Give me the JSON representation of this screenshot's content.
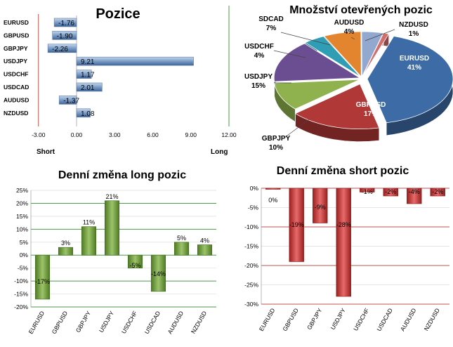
{
  "chart_data": [
    {
      "type": "bar",
      "orientation": "horizontal",
      "title": "Pozice",
      "categories": [
        "EURUSD",
        "GBPUSD",
        "GBPJPY",
        "USDJPY",
        "USDCHF",
        "USDCAD",
        "AUDUSD",
        "NZDUSD"
      ],
      "values": [
        -1.76,
        -1.9,
        -2.26,
        9.21,
        1.17,
        2.01,
        -1.37,
        1.08
      ],
      "value_labels": [
        "-1.76",
        "-1.90",
        "-2.26",
        "9.21",
        "1.17",
        "2.01",
        "-1.37",
        "1.08"
      ],
      "xlim": [
        -3,
        12
      ],
      "xticks": [
        "-3.00",
        "0.00",
        "3.00",
        "6.00",
        "9.00",
        "12.00"
      ],
      "left_label": "Short",
      "right_label": "Long",
      "colors": {
        "bar": "#7a9cc6",
        "grid_left": "#c0504d",
        "grid_right": "#4e9a4a"
      }
    },
    {
      "type": "pie",
      "title": "Množství otevřených pozic",
      "slices": [
        {
          "name": "EURUSD",
          "pct": 41,
          "label": "41%",
          "color": "#3d6ba5"
        },
        {
          "name": "GBPUSD",
          "pct": 17,
          "label": "17%",
          "color": "#b03836"
        },
        {
          "name": "GBPJPY",
          "pct": 10,
          "label": "10%",
          "color": "#8fb24e"
        },
        {
          "name": "USDJPY",
          "pct": 15,
          "label": "15%",
          "color": "#6b4e92"
        },
        {
          "name": "USDCHF",
          "pct": 4,
          "label": "4%",
          "color": "#2f9db3"
        },
        {
          "name": "SDCAD",
          "pct": 7,
          "label": "7%",
          "color": "#e3852e"
        },
        {
          "name": "AUDUSD",
          "pct": 4,
          "label": "4%",
          "color": "#93a8cf"
        },
        {
          "name": "NZDUSD",
          "pct": 1,
          "label": "1%",
          "color": "#d36d6b"
        }
      ]
    },
    {
      "type": "bar",
      "title": "Denní změna long pozic",
      "categories": [
        "EURUSD",
        "GBPUSD",
        "GBPJPY",
        "USDJPY",
        "USDCHF",
        "USDCAD",
        "AUDUSD",
        "NZDUSD"
      ],
      "values": [
        -17,
        3,
        11,
        21,
        -5,
        -14,
        5,
        4
      ],
      "value_labels": [
        "-17%",
        "3%",
        "11%",
        "21%",
        "-5%",
        "-14%",
        "5%",
        "4%"
      ],
      "ylim": [
        -20,
        25
      ],
      "yticks": [
        "-20%",
        "-15%",
        "-10%",
        "-5%",
        "0%",
        "5%",
        "10%",
        "15%",
        "20%",
        "25%"
      ],
      "colors": {
        "bar": "#6f9a3a",
        "grid": "#4e9a4a"
      }
    },
    {
      "type": "bar",
      "title": "Denní změna short pozic",
      "categories": [
        "EURUSD",
        "GBPUSD",
        "GBPJPY",
        "USDJPY",
        "USDCHF",
        "USDCAD",
        "AUDUSD",
        "NZDUSD"
      ],
      "values": [
        0,
        -19,
        -9,
        -28,
        -1,
        -2,
        -4,
        -2
      ],
      "value_labels": [
        "0%",
        "-19%",
        "-9%",
        "-28%",
        "-1%",
        "-2%",
        "-4%",
        "-2%"
      ],
      "ylim": [
        -30,
        0
      ],
      "yticks": [
        "-30%",
        "-25%",
        "-20%",
        "-15%",
        "-10%",
        "-5%",
        "0%"
      ],
      "colors": {
        "bar": "#d23c3c",
        "grid": "#c0504d"
      }
    }
  ]
}
